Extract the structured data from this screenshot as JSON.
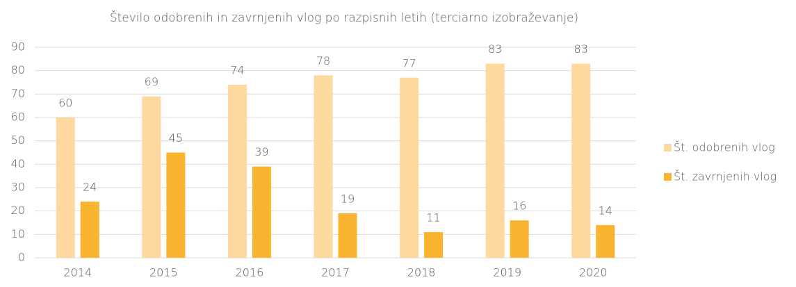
{
  "chart_data": {
    "type": "bar",
    "title": "Število odobrenih in zavrnjenih vlog po razpisnih letih (terciarno izobraževanje)",
    "categories": [
      "2014",
      "2015",
      "2016",
      "2017",
      "2018",
      "2019",
      "2020"
    ],
    "series": [
      {
        "name": "Št. odobrenih vlog",
        "color": "#fdd9a0",
        "values": [
          60,
          69,
          74,
          78,
          77,
          83,
          83
        ]
      },
      {
        "name": "Št. zavrnjenih vlog",
        "color": "#f9b52f",
        "values": [
          24,
          45,
          39,
          19,
          11,
          16,
          14
        ]
      }
    ],
    "ylim": [
      0,
      90
    ],
    "yticks": [
      0,
      10,
      20,
      30,
      40,
      50,
      60,
      70,
      80,
      90
    ],
    "grid": true,
    "legend": "right"
  }
}
